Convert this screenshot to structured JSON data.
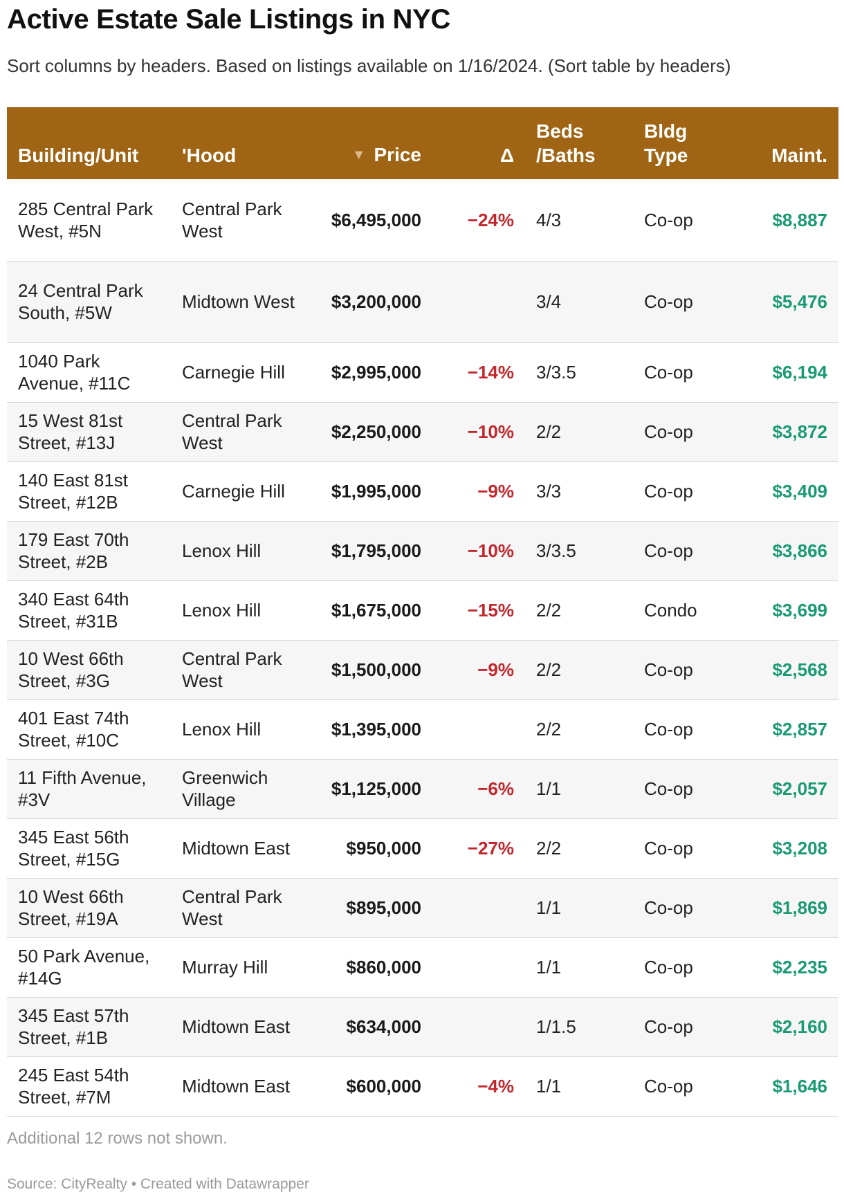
{
  "title": "Active Estate Sale Listings in NYC",
  "subtitle": "Sort columns by headers. Based on listings available on 1/16/2024. (Sort table by headers)",
  "colors": {
    "header_bg": "#a06514",
    "delta_negative": "#c1272d",
    "maint": "#1a9a74",
    "row_stripe": "#f6f6f6"
  },
  "chart_data": {
    "type": "table",
    "sorted_by": "Price",
    "sort_direction": "descending",
    "columns": [
      {
        "key": "building",
        "label": "Building/Unit"
      },
      {
        "key": "hood",
        "label": "'Hood"
      },
      {
        "key": "price",
        "label": "Price",
        "sort_icon": "sort-descending-arrow"
      },
      {
        "key": "delta",
        "label": "Δ"
      },
      {
        "key": "beds",
        "label": "Beds /Baths"
      },
      {
        "key": "type",
        "label": "Bldg Type"
      },
      {
        "key": "maint",
        "label": "Maint."
      }
    ],
    "rows": [
      {
        "building": "285 Central Park West, #5N",
        "hood": "Central Park West",
        "price": "$6,495,000",
        "delta": "−24%",
        "beds": "4/3",
        "type": "Co-op",
        "maint": "$8,887"
      },
      {
        "building": "24 Central Park South, #5W",
        "hood": "Midtown West",
        "price": "$3,200,000",
        "delta": "",
        "beds": "3/4",
        "type": "Co-op",
        "maint": "$5,476"
      },
      {
        "building": "1040 Park Avenue, #11C",
        "hood": "Carnegie Hill",
        "price": "$2,995,000",
        "delta": "−14%",
        "beds": "3/3.5",
        "type": "Co-op",
        "maint": "$6,194"
      },
      {
        "building": "15 West 81st Street, #13J",
        "hood": "Central Park West",
        "price": "$2,250,000",
        "delta": "−10%",
        "beds": "2/2",
        "type": "Co-op",
        "maint": "$3,872"
      },
      {
        "building": "140 East 81st Street, #12B",
        "hood": "Carnegie Hill",
        "price": "$1,995,000",
        "delta": "−9%",
        "beds": "3/3",
        "type": "Co-op",
        "maint": "$3,409"
      },
      {
        "building": "179 East 70th Street, #2B",
        "hood": "Lenox Hill",
        "price": "$1,795,000",
        "delta": "−10%",
        "beds": "3/3.5",
        "type": "Co-op",
        "maint": "$3,866"
      },
      {
        "building": "340 East 64th Street, #31B",
        "hood": "Lenox Hill",
        "price": "$1,675,000",
        "delta": "−15%",
        "beds": "2/2",
        "type": "Condo",
        "maint": "$3,699"
      },
      {
        "building": "10 West 66th Street, #3G",
        "hood": "Central Park West",
        "price": "$1,500,000",
        "delta": "−9%",
        "beds": "2/2",
        "type": "Co-op",
        "maint": "$2,568"
      },
      {
        "building": "401 East 74th Street, #10C",
        "hood": "Lenox Hill",
        "price": "$1,395,000",
        "delta": "",
        "beds": "2/2",
        "type": "Co-op",
        "maint": "$2,857"
      },
      {
        "building": "11 Fifth Avenue, #3V",
        "hood": "Greenwich Village",
        "price": "$1,125,000",
        "delta": "−6%",
        "beds": "1/1",
        "type": "Co-op",
        "maint": "$2,057"
      },
      {
        "building": "345 East 56th Street, #15G",
        "hood": "Midtown East",
        "price": "$950,000",
        "delta": "−27%",
        "beds": "2/2",
        "type": "Co-op",
        "maint": "$3,208"
      },
      {
        "building": "10 West 66th Street, #19A",
        "hood": "Central Park West",
        "price": "$895,000",
        "delta": "",
        "beds": "1/1",
        "type": "Co-op",
        "maint": "$1,869"
      },
      {
        "building": "50 Park Avenue, #14G",
        "hood": "Murray Hill",
        "price": "$860,000",
        "delta": "",
        "beds": "1/1",
        "type": "Co-op",
        "maint": "$2,235"
      },
      {
        "building": "345 East 57th Street, #1B",
        "hood": "Midtown East",
        "price": "$634,000",
        "delta": "",
        "beds": "1/1.5",
        "type": "Co-op",
        "maint": "$2,160"
      },
      {
        "building": "245 East 54th Street, #7M",
        "hood": "Midtown East",
        "price": "$600,000",
        "delta": "−4%",
        "beds": "1/1",
        "type": "Co-op",
        "maint": "$1,646"
      }
    ]
  },
  "footer": {
    "rows_not_shown": "Additional 12 rows not shown.",
    "source": "Source: CityRealty • Created with Datawrapper"
  }
}
